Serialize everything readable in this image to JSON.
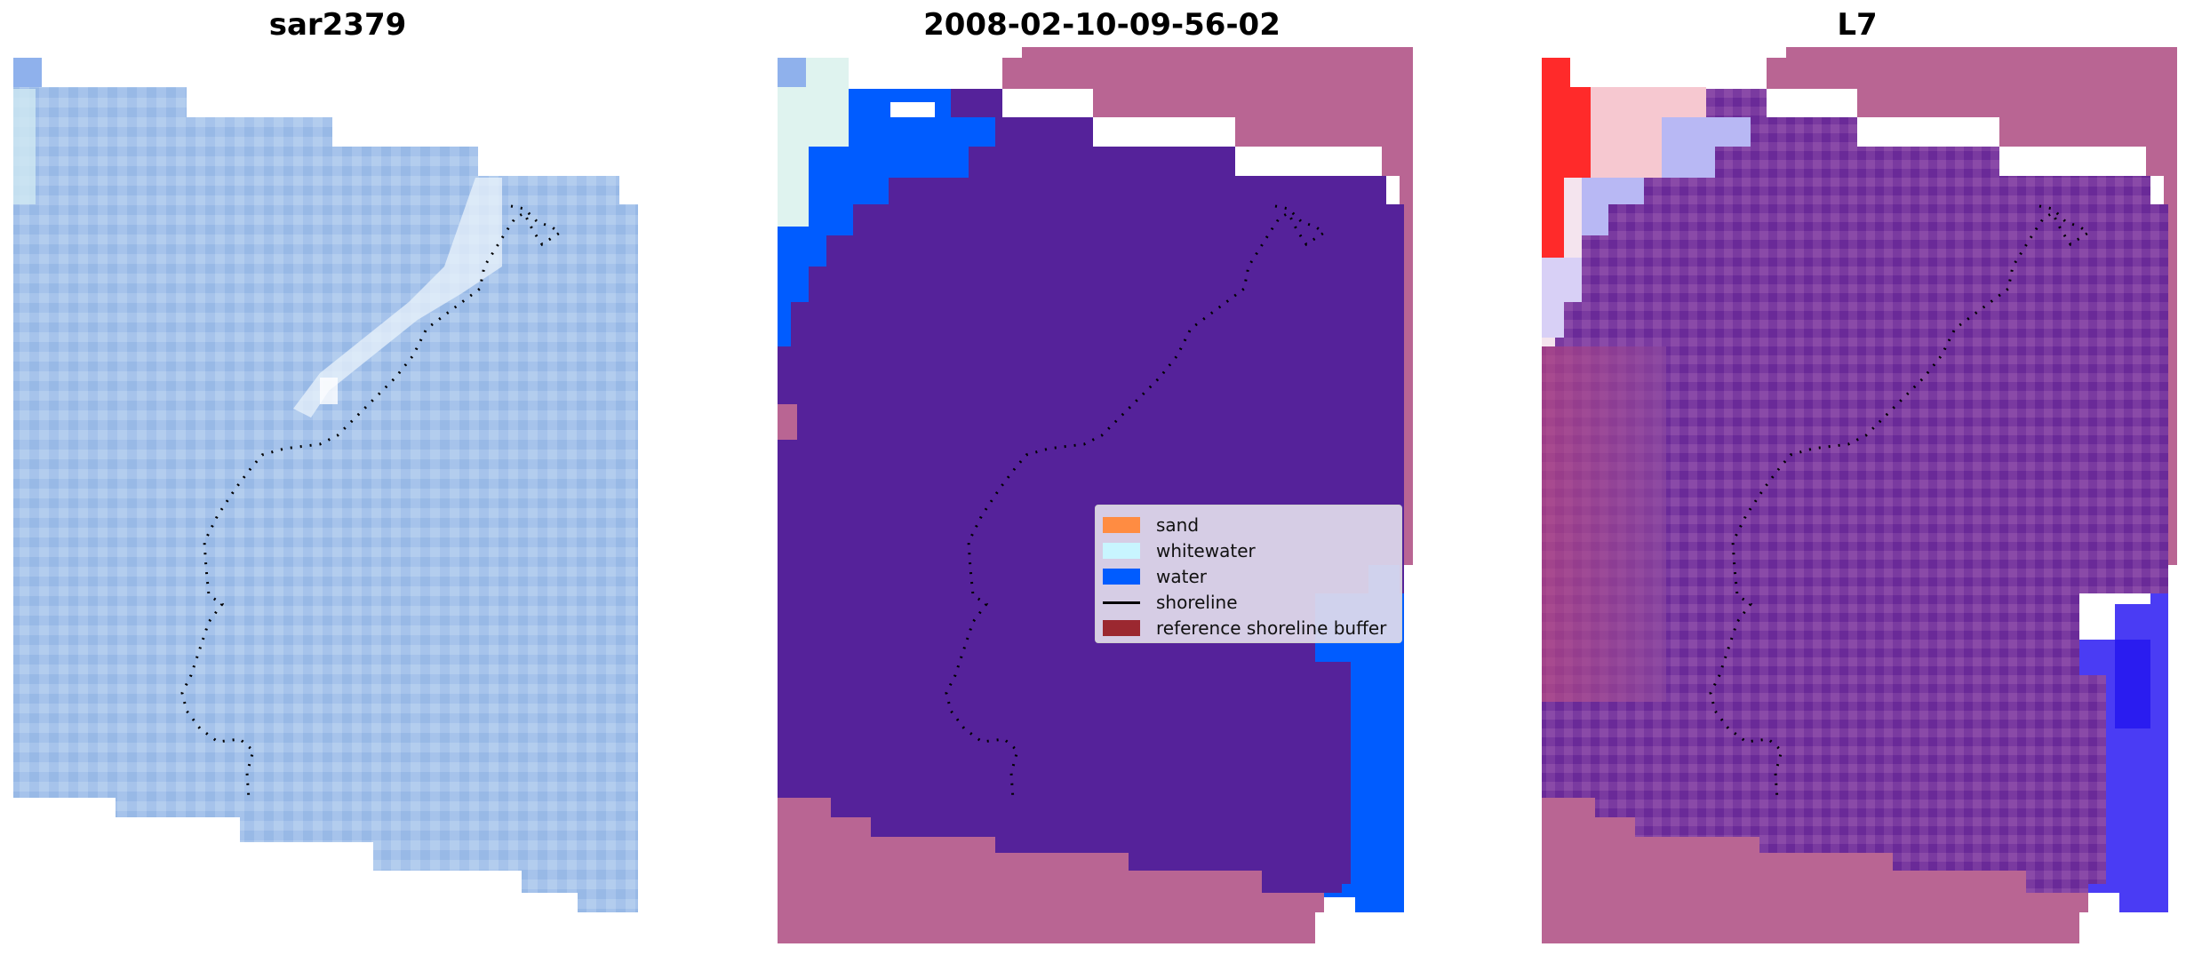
{
  "panels": [
    {
      "id": "left",
      "title": "sar2379"
    },
    {
      "id": "middle",
      "title": "2008-02-10-09-56-02"
    },
    {
      "id": "right",
      "title": "L7"
    }
  ],
  "legend": {
    "items": [
      {
        "label": "sand",
        "color": "#ff8c42",
        "kind": "patch"
      },
      {
        "label": "whitewater",
        "color": "#c8f5ff",
        "kind": "patch"
      },
      {
        "label": "water",
        "color": "#005cff",
        "kind": "patch"
      },
      {
        "label": "shoreline",
        "color": "#000000",
        "kind": "line"
      },
      {
        "label": "reference shoreline buffer",
        "color": "#9b2830",
        "kind": "patch"
      }
    ]
  },
  "colors": {
    "land_purple": "#55229a",
    "buffer_pink": "#b96593",
    "water_blue": "#005cff",
    "sar_blue": "#a3c1ea",
    "whitewater": "#c8f5ff"
  }
}
